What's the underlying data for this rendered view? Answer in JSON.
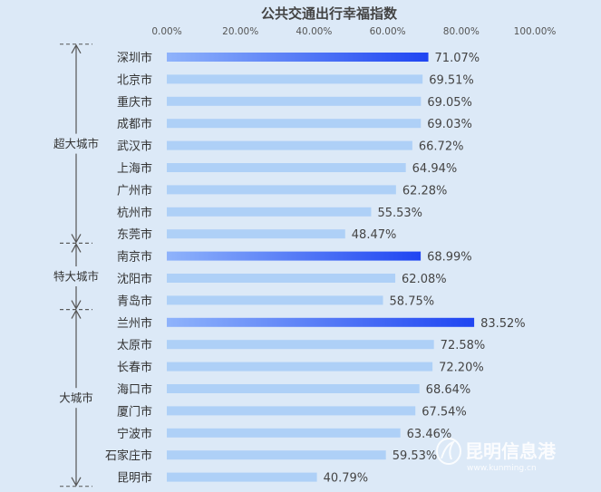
{
  "chart_data": {
    "type": "bar",
    "orientation": "horizontal",
    "title": "公共交通出行幸福指数",
    "xlim": [
      0,
      100
    ],
    "x_ticks": [
      "0.00%",
      "20.00%",
      "40.00%",
      "60.00%",
      "80.00%",
      "100.00%"
    ],
    "x_axis_position": "top",
    "grid": false,
    "categories": [
      "深圳市",
      "北京市",
      "重庆市",
      "成都市",
      "武汉市",
      "上海市",
      "广州市",
      "杭州市",
      "东莞市",
      "南京市",
      "沈阳市",
      "青岛市",
      "兰州市",
      "太原市",
      "长春市",
      "海口市",
      "厦门市",
      "宁波市",
      "石家庄市",
      "昆明市"
    ],
    "values": [
      71.07,
      69.51,
      69.05,
      69.03,
      66.72,
      64.94,
      62.28,
      55.53,
      48.47,
      68.99,
      62.08,
      58.75,
      83.52,
      72.58,
      72.2,
      68.64,
      67.54,
      63.46,
      59.53,
      40.79
    ],
    "value_labels": [
      "71.07%",
      "69.51%",
      "69.05%",
      "69.03%",
      "66.72%",
      "64.94%",
      "62.28%",
      "55.53%",
      "48.47%",
      "68.99%",
      "62.08%",
      "58.75%",
      "83.52%",
      "72.58%",
      "72.20%",
      "68.64%",
      "67.54%",
      "63.46%",
      "59.53%",
      "40.79%"
    ],
    "highlighted_categories": [
      "深圳市",
      "南京市",
      "兰州市"
    ],
    "groups": [
      {
        "label": "超大城市",
        "start": 0,
        "end": 8
      },
      {
        "label": "特大城市",
        "start": 9,
        "end": 11
      },
      {
        "label": "大城市",
        "start": 12,
        "end": 19
      }
    ],
    "colors": {
      "background": "#dce9f7",
      "bar": "#aed0f7",
      "highlight_start": "#8fb3fb",
      "highlight_end": "#1f45f2",
      "bracket": "#555555"
    }
  },
  "watermark": {
    "name": "昆明信息港",
    "url": "www.kunming.cn"
  }
}
